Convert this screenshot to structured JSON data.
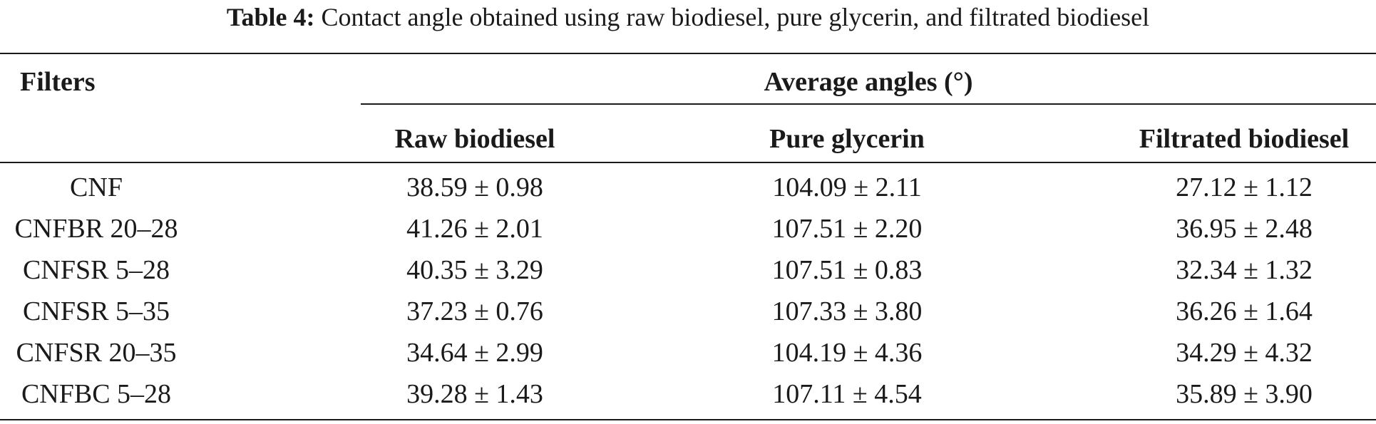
{
  "caption": {
    "label": "Table 4:",
    "text": "Contact angle obtained using raw biodiesel, pure glycerin, and filtrated biodiesel"
  },
  "table": {
    "header_filters": "Filters",
    "header_group": "Average angles (°)",
    "columns": [
      "Raw biodiesel",
      "Pure glycerin",
      "Filtrated biodiesel"
    ],
    "rows": [
      {
        "filter": "CNF",
        "raw": "38.59 ± 0.98",
        "glycerin": "104.09 ± 2.11",
        "filtrated": "27.12 ± 1.12"
      },
      {
        "filter": "CNFBR 20–28",
        "raw": "41.26 ± 2.01",
        "glycerin": "107.51 ± 2.20",
        "filtrated": "36.95 ± 2.48"
      },
      {
        "filter": "CNFSR 5–28",
        "raw": "40.35 ± 3.29",
        "glycerin": "107.51 ± 0.83",
        "filtrated": "32.34 ± 1.32"
      },
      {
        "filter": "CNFSR 5–35",
        "raw": "37.23 ± 0.76",
        "glycerin": "107.33 ± 3.80",
        "filtrated": "36.26 ± 1.64"
      },
      {
        "filter": "CNFSR 20–35",
        "raw": "34.64 ± 2.99",
        "glycerin": "104.19 ± 4.36",
        "filtrated": "34.29 ± 4.32"
      },
      {
        "filter": "CNFBC 5–28",
        "raw": "39.28 ± 1.43",
        "glycerin": "107.11 ± 4.54",
        "filtrated": "35.89 ± 3.90"
      }
    ]
  }
}
